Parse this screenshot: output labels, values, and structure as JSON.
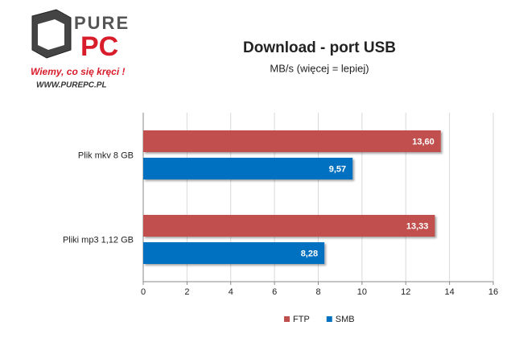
{
  "logo": {
    "brand": "PURE",
    "brand_suffix": "PC",
    "slogan": "Wiemy, co się kręci !",
    "url": "WWW.PUREPC.PL"
  },
  "chart_data": {
    "type": "bar",
    "orientation": "horizontal",
    "title": "Download - port USB",
    "subtitle": "MB/s (więcej = lepiej)",
    "categories": [
      "Plik mkv 8 GB",
      "Pliki mp3 1,12 GB"
    ],
    "series": [
      {
        "name": "FTP",
        "color": "#c0504d",
        "values": [
          13.6,
          13.33
        ],
        "value_labels": [
          "13,60",
          "13,33"
        ]
      },
      {
        "name": "SMB",
        "color": "#0070c0",
        "values": [
          9.57,
          8.28
        ],
        "value_labels": [
          "9,57",
          "8,28"
        ]
      }
    ],
    "xlim": [
      0,
      16
    ],
    "xticks": [
      0,
      2,
      4,
      6,
      8,
      10,
      12,
      14,
      16
    ],
    "grid": true,
    "legend": "bottom"
  }
}
